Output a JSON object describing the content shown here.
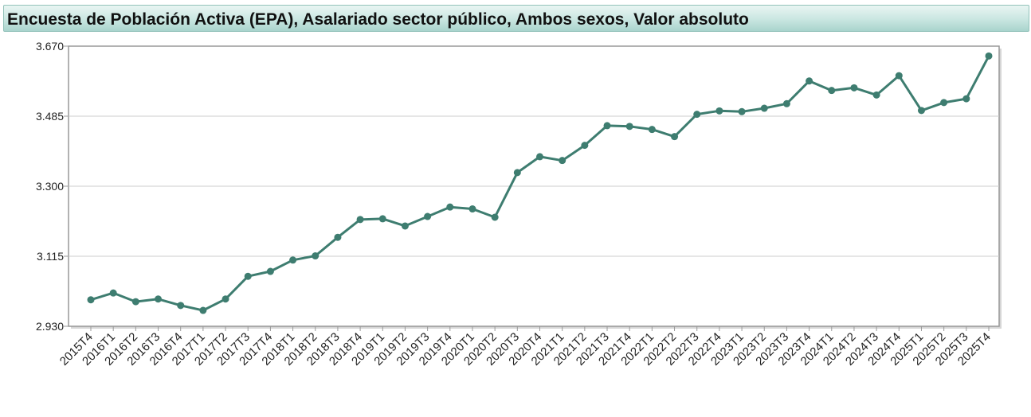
{
  "chart_data": {
    "type": "line",
    "title": "Encuesta de Población Activa (EPA), Asalariado sector público, Ambos sexos, Valor absoluto",
    "xlabel": "",
    "ylabel": "",
    "ylim": [
      2930,
      3670
    ],
    "yticks": [
      "2.930",
      "3.115",
      "3.300",
      "3.485",
      "3.670"
    ],
    "grid": true,
    "legend": "none",
    "colors": {
      "line": "#3e7d70",
      "point": "#3e7d70",
      "grid": "#cccccc",
      "frame": "#999999"
    },
    "categories": [
      "2015T4",
      "2016T1",
      "2016T2",
      "2016T3",
      "2016T4",
      "2017T1",
      "2017T2",
      "2017T3",
      "2017T4",
      "2018T1",
      "2018T2",
      "2018T3",
      "2018T4",
      "2019T1",
      "2019T2",
      "2019T3",
      "2019T4",
      "2020T1",
      "2020T2",
      "2020T3",
      "2020T4",
      "2021T1",
      "2021T2",
      "2021T3",
      "2021T4",
      "2022T1",
      "2022T2",
      "2022T3",
      "2022T4",
      "2023T1",
      "2023T2",
      "2023T3",
      "2023T4",
      "2024T1",
      "2024T2",
      "2024T3",
      "2024T4",
      "2025T1",
      "2025T2",
      "2025T3",
      "2025T4"
    ],
    "series": [
      {
        "values": [
          3000,
          3018,
          2995,
          3002,
          2985,
          2972,
          3002,
          3062,
          3075,
          3105,
          3116,
          3165,
          3212,
          3214,
          3195,
          3220,
          3245,
          3240,
          3218,
          3336,
          3378,
          3368,
          3408,
          3460,
          3458,
          3450,
          3431,
          3490,
          3499,
          3497,
          3506,
          3518,
          3578,
          3553,
          3560,
          3541,
          3592,
          3500,
          3521,
          3531,
          3644
        ]
      }
    ]
  }
}
